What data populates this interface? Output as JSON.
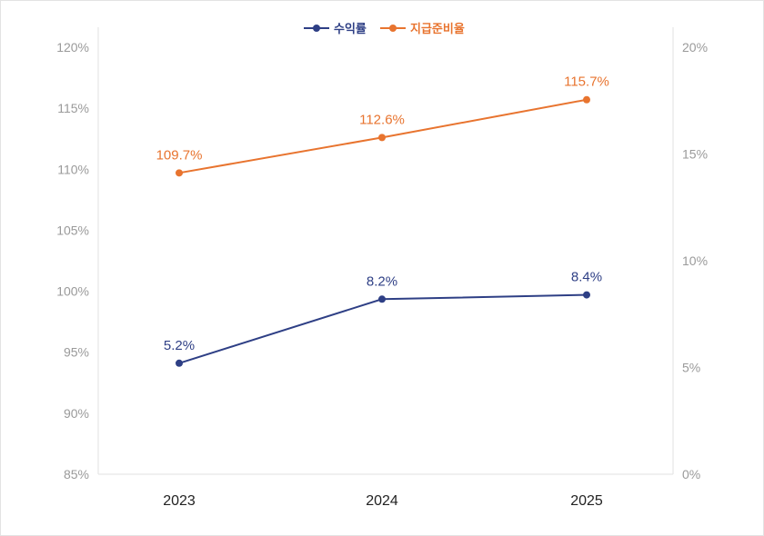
{
  "chart_data": {
    "type": "line",
    "categories": [
      "2023",
      "2024",
      "2025"
    ],
    "series": [
      {
        "name": "수익률",
        "values": [
          5.2,
          8.2,
          8.4
        ],
        "labels": [
          "5.2%",
          "8.2%",
          "8.4%"
        ],
        "axis": "right",
        "color": "#2e3f85"
      },
      {
        "name": "지급준비율",
        "values": [
          109.7,
          112.6,
          115.7
        ],
        "labels": [
          "109.7%",
          "112.6%",
          "115.7%"
        ],
        "axis": "left",
        "color": "#e8742f"
      }
    ],
    "y_left": {
      "range": [
        85,
        120
      ],
      "ticks": [
        "85%",
        "90%",
        "95%",
        "100%",
        "105%",
        "110%",
        "115%",
        "120%"
      ]
    },
    "y_right": {
      "range": [
        0,
        20
      ],
      "ticks": [
        "0%",
        "5%",
        "10%",
        "15%",
        "20%"
      ]
    },
    "grid": false,
    "legend": "top-center"
  }
}
